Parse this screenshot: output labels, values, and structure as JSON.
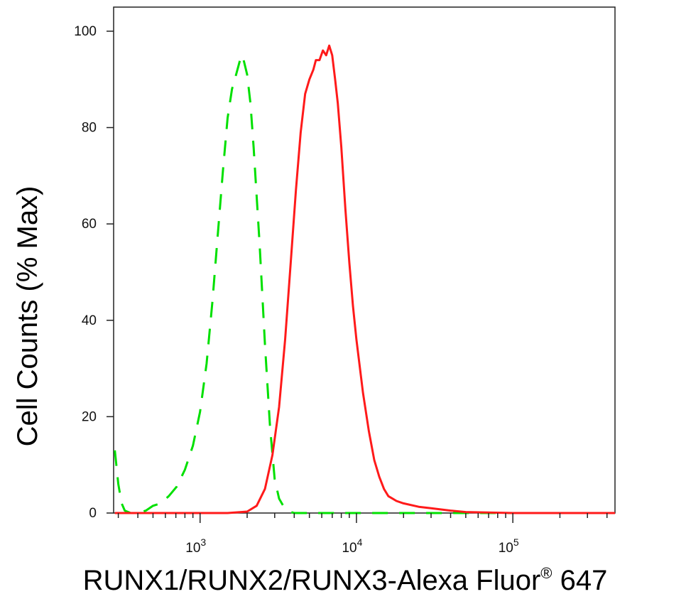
{
  "chart_data": {
    "type": "line",
    "xlabel": "RUNX1/RUNX2/RUNX3-Alexa Fluor",
    "xlabel_sup": "®",
    "xlabel_tail": " 647",
    "ylabel": "Cell Counts (% Max)",
    "x_scale": "log",
    "xlim": [
      280,
      450000
    ],
    "ylim": [
      0,
      105
    ],
    "yticks": [
      0,
      20,
      40,
      60,
      80,
      100
    ],
    "xticks": [
      {
        "value": 1000,
        "base": "10",
        "exp": "3"
      },
      {
        "value": 10000,
        "base": "10",
        "exp": "4"
      },
      {
        "value": 100000,
        "base": "10",
        "exp": "5"
      }
    ],
    "grid": false,
    "series": [
      {
        "color": "#00e000",
        "dash": "dashed",
        "x": [
          285,
          300,
          315,
          330,
          360,
          400,
          450,
          500,
          560,
          630,
          710,
          800,
          900,
          1000,
          1100,
          1200,
          1300,
          1400,
          1500,
          1600,
          1700,
          1800,
          1850,
          1900,
          2000,
          2100,
          2200,
          2400,
          2600,
          2800,
          3000,
          3200,
          3400,
          3600,
          3800,
          4000,
          5000,
          6000,
          8000,
          10000,
          15000,
          20000,
          50000,
          100000,
          450000
        ],
        "y": [
          13,
          6,
          2,
          0.5,
          0,
          0,
          0.5,
          1.5,
          2,
          3.5,
          5.5,
          9,
          14,
          21,
          31,
          44,
          58,
          71,
          82,
          88,
          91,
          94,
          95,
          94,
          91,
          85,
          76,
          56,
          35,
          18,
          7,
          3,
          1.5,
          0.6,
          0.2,
          0,
          0,
          0,
          0,
          0,
          0,
          0,
          0,
          0,
          0
        ]
      },
      {
        "color": "#ff1a1a",
        "dash": "solid",
        "x": [
          285,
          1500,
          2000,
          2300,
          2600,
          2900,
          3200,
          3500,
          3800,
          4100,
          4400,
          4700,
          5000,
          5300,
          5500,
          5800,
          6100,
          6400,
          6700,
          7000,
          7300,
          7600,
          8000,
          8500,
          9000,
          9500,
          10000,
          11000,
          12000,
          13000,
          14000,
          15000,
          16000,
          17000,
          18000,
          20000,
          25000,
          30000,
          40000,
          50000,
          100000,
          450000
        ],
        "y": [
          0,
          0,
          0.3,
          1.5,
          5,
          12,
          22,
          36,
          52,
          67,
          79,
          87,
          90,
          92,
          94,
          94,
          96,
          95,
          97,
          95,
          90,
          85,
          76,
          63,
          52,
          43,
          36,
          25,
          17,
          11,
          7.5,
          5,
          3.5,
          3,
          2.5,
          2,
          1.3,
          1,
          0.5,
          0.2,
          0,
          0
        ]
      }
    ]
  }
}
